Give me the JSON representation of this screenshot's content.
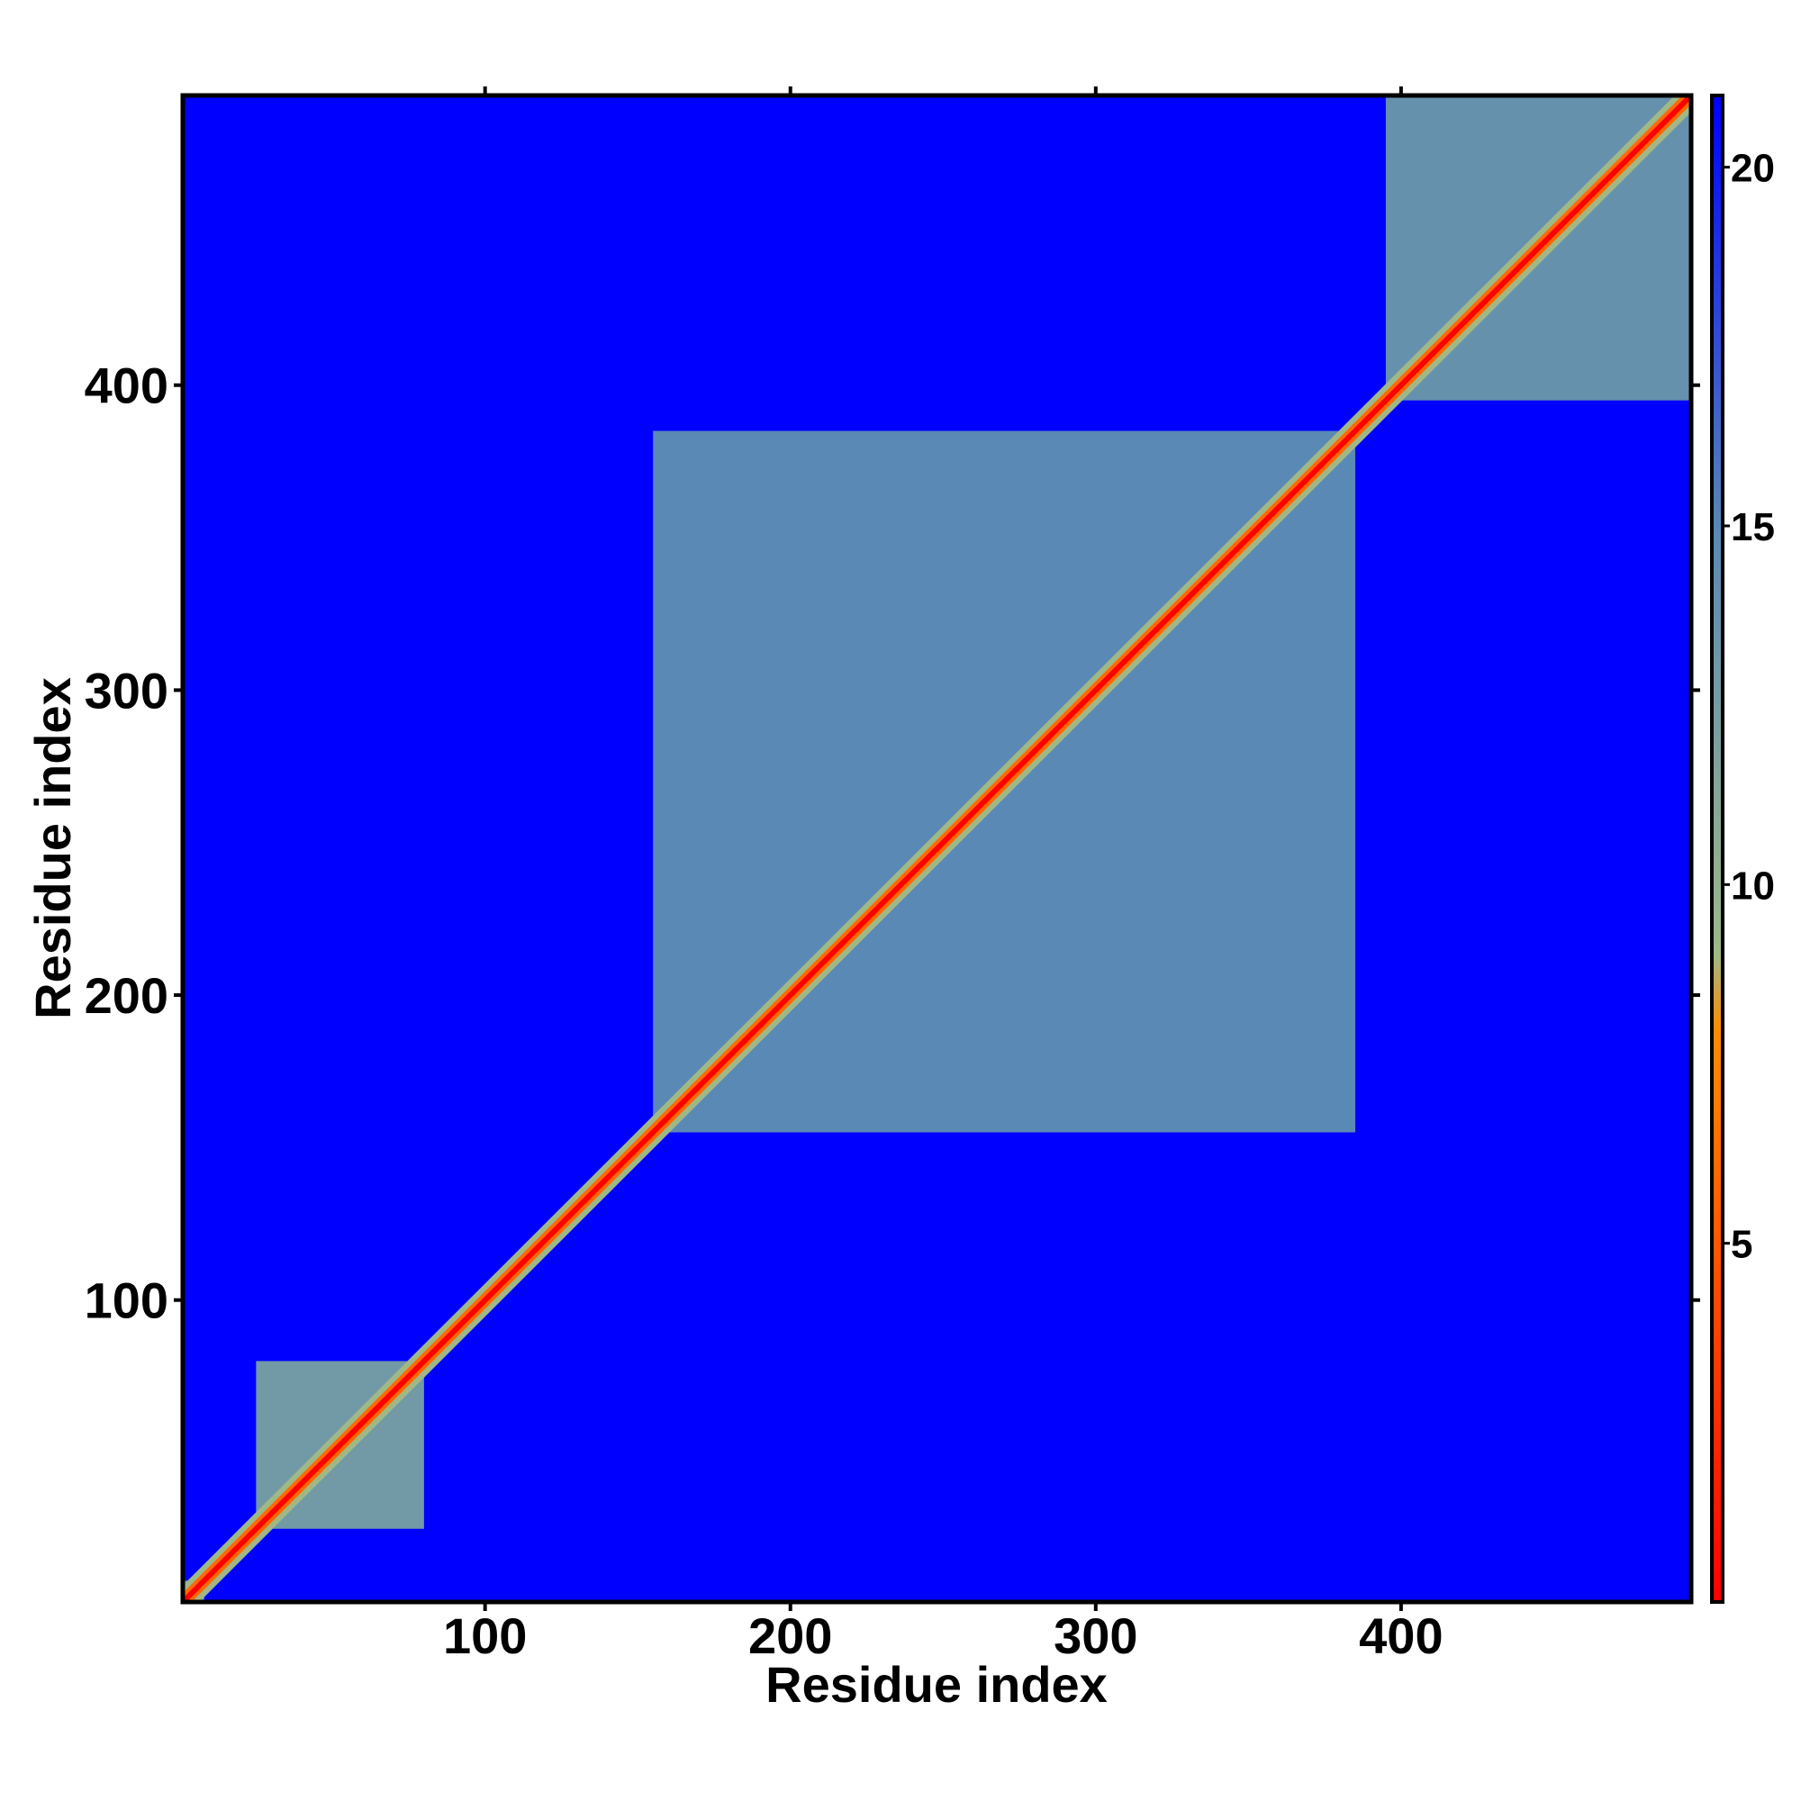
{
  "chart_data": {
    "type": "heatmap",
    "title": "",
    "xlabel": "Residue index",
    "ylabel": "Residue index",
    "xlim": [
      1,
      495
    ],
    "ylim": [
      1,
      495
    ],
    "x_ticks": [
      100,
      200,
      300,
      400
    ],
    "y_ticks": [
      100,
      200,
      300,
      400
    ],
    "x_tick_labels": [
      "100",
      "200",
      "300",
      "400"
    ],
    "y_tick_labels": [
      "100",
      "200",
      "300",
      "400"
    ],
    "colorbar": {
      "range": [
        0,
        21
      ],
      "ticks": [
        5,
        10,
        15,
        20
      ],
      "tick_labels": [
        "5",
        "10",
        "15",
        "20"
      ],
      "colors": [
        "#ff0000",
        "#ff8c00",
        "#9fb887",
        "#5b89b5",
        "#0000ff"
      ],
      "stops": [
        0,
        8,
        9,
        15,
        21
      ]
    },
    "background_value": 21,
    "diagonal": [
      1,
      495
    ],
    "domains": [
      {
        "range": [
          1,
          8
        ],
        "value": 12
      },
      {
        "range": [
          25,
          80
        ],
        "value": 13
      },
      {
        "range": [
          155,
          385
        ],
        "value": 15
      },
      {
        "range": [
          395,
          495
        ],
        "value": 14
      }
    ],
    "grid": false,
    "legend": "colorbar-right"
  }
}
